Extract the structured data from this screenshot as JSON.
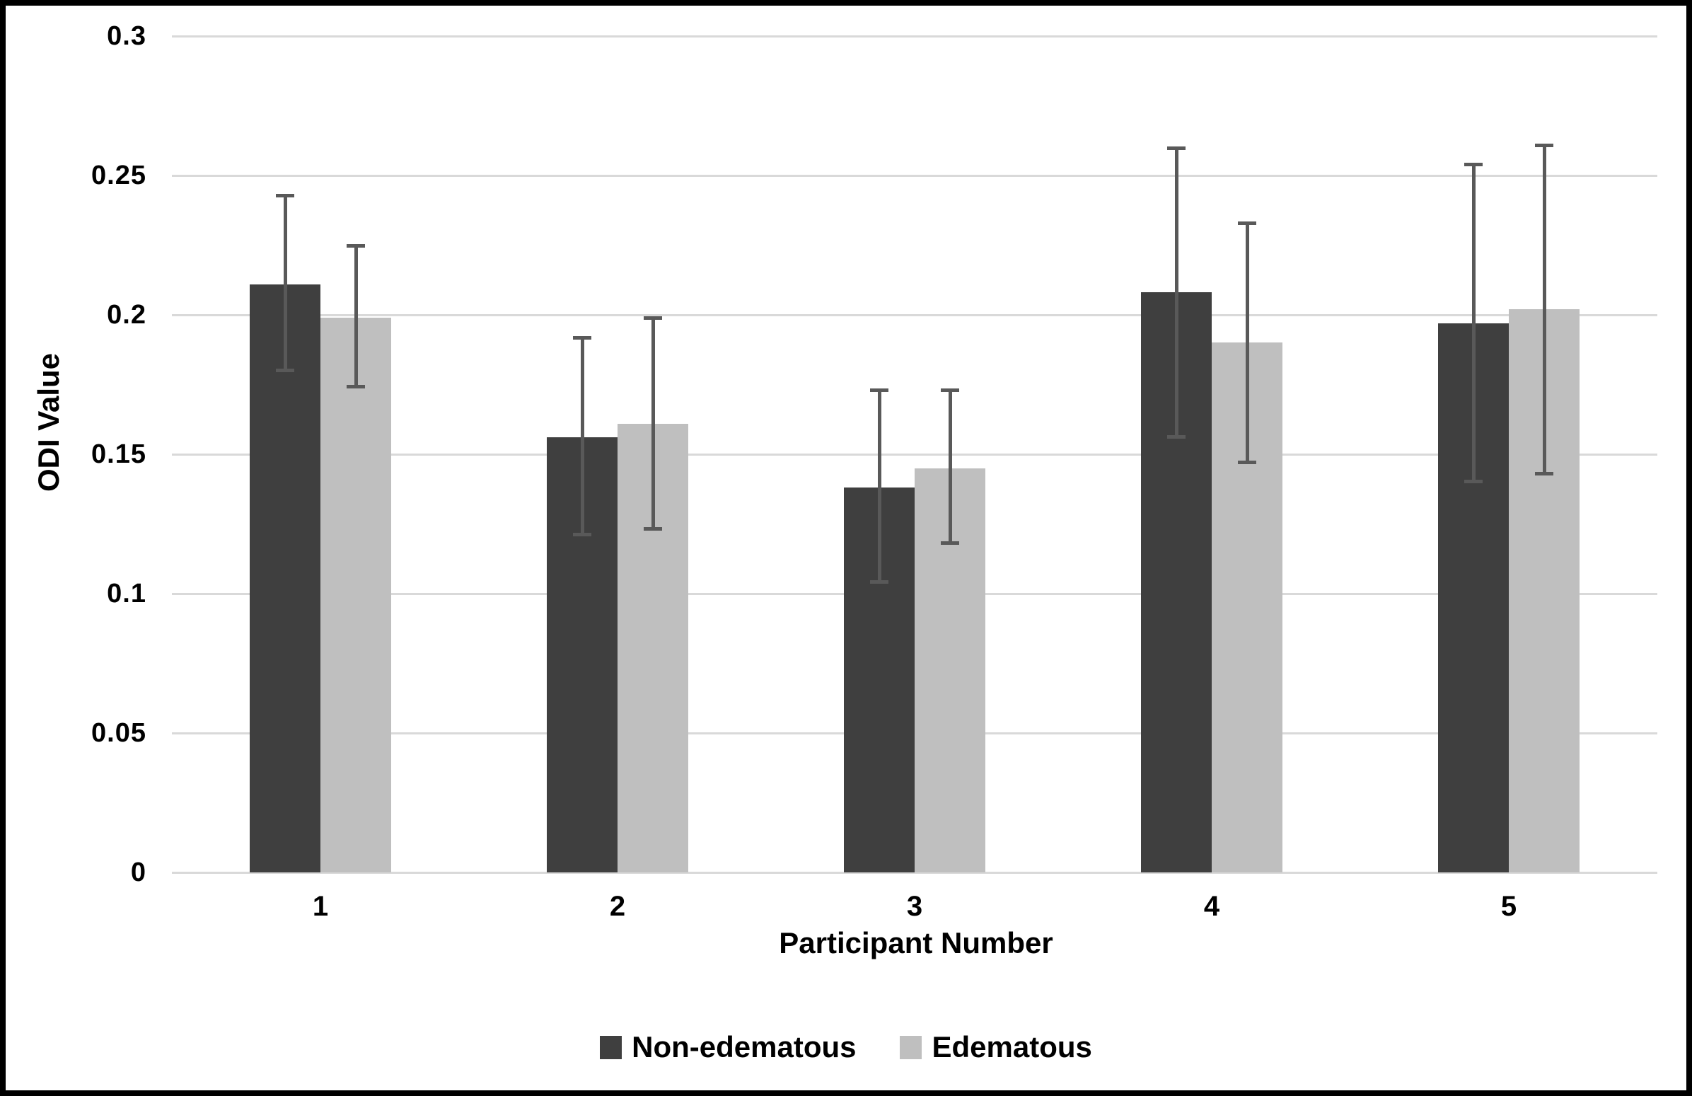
{
  "chart_data": {
    "type": "bar",
    "title": "",
    "xlabel": "Participant Number",
    "ylabel": "ODI Value",
    "categories": [
      "1",
      "2",
      "3",
      "4",
      "5"
    ],
    "ylim": [
      0,
      0.3
    ],
    "ytick_values": [
      0,
      0.05,
      0.1,
      0.15,
      0.2,
      0.25,
      0.3
    ],
    "ytick_labels": [
      "0",
      "0.05",
      "0.1",
      "0.15",
      "0.2",
      "0.25",
      "0.3"
    ],
    "grid": true,
    "legend_position": "bottom",
    "series": [
      {
        "name": "Non-edematous",
        "color": "#3f3f3f",
        "values": [
          0.211,
          0.156,
          0.138,
          0.208,
          0.197
        ],
        "error_low": [
          0.18,
          0.121,
          0.104,
          0.156,
          0.14
        ],
        "error_high": [
          0.243,
          0.192,
          0.173,
          0.26,
          0.254
        ]
      },
      {
        "name": "Edematous",
        "color": "#bfbfbf",
        "values": [
          0.199,
          0.161,
          0.145,
          0.19,
          0.202
        ],
        "error_low": [
          0.174,
          0.123,
          0.118,
          0.147,
          0.143
        ],
        "error_high": [
          0.225,
          0.199,
          0.173,
          0.233,
          0.261
        ]
      }
    ],
    "colors": {
      "error_bar": "#595959",
      "gridline": "#d9d9d9",
      "text": "#000000",
      "background": "#ffffff",
      "frame": "#000000"
    }
  }
}
